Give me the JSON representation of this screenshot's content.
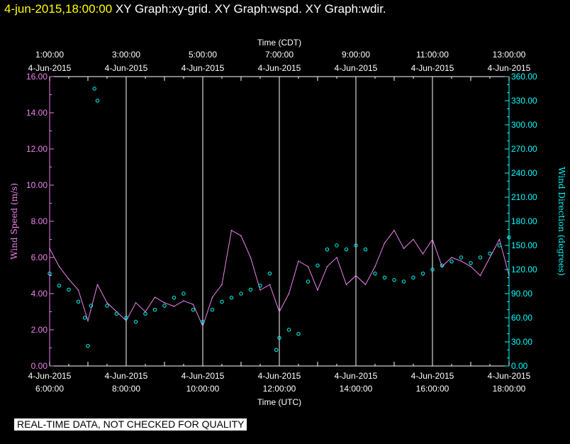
{
  "header": {
    "timestamp": "4-jun-2015,18:00:00",
    "graphs": "XY Graph:xy-grid.  XY Graph:wspd.  XY Graph:wdir."
  },
  "notice": "REAL-TIME DATA, NOT CHECKED FOR QUALITY",
  "chart_data": {
    "type": "line",
    "top_axis": {
      "label": "Time (CDT)",
      "ticks": [
        {
          "time": "1:00:00",
          "date": "4-Jun-2015"
        },
        {
          "time": "3:00:00",
          "date": "4-Jun-2015"
        },
        {
          "time": "5:00:00",
          "date": "4-Jun-2015"
        },
        {
          "time": "7:00:00",
          "date": "4-Jun-2015"
        },
        {
          "time": "9:00:00",
          "date": "4-Jun-2015"
        },
        {
          "time": "11:00:00",
          "date": "4-Jun-2015"
        },
        {
          "time": "13:00:00",
          "date": "4-Jun-2015"
        }
      ]
    },
    "bottom_axis": {
      "label": "Time (UTC)",
      "ticks": [
        {
          "date": "4-Jun-2015",
          "time": "6:00:00"
        },
        {
          "date": "4-Jun-2015",
          "time": "8:00:00"
        },
        {
          "date": "4-Jun-2015",
          "time": "10:00:00"
        },
        {
          "date": "4-Jun-2015",
          "time": "12:00:00"
        },
        {
          "date": "4-Jun-2015",
          "time": "14:00:00"
        },
        {
          "date": "4-Jun-2015",
          "time": "16:00:00"
        },
        {
          "date": "4-Jun-2015",
          "time": "18:00:00"
        }
      ]
    },
    "x_range_utc_hours": [
      6,
      18
    ],
    "left_axis": {
      "label": "Wind Speed (m/s)",
      "range": [
        0,
        16
      ],
      "ticks": [
        "0.00",
        "2.00",
        "4.00",
        "6.00",
        "8.00",
        "10.00",
        "12.00",
        "14.00",
        "16.00"
      ],
      "color": "#ee82ee"
    },
    "right_axis": {
      "label": "Wind Direction (degrees)",
      "range": [
        0,
        360
      ],
      "ticks": [
        "0.00",
        "30.00",
        "60.00",
        "90.00",
        "120.00",
        "150.00",
        "180.00",
        "210.00",
        "240.00",
        "270.00",
        "300.00",
        "330.00",
        "360.00"
      ],
      "color": "#00ffff"
    },
    "grid": "vertical",
    "series": [
      {
        "name": "wspd",
        "axis": "left",
        "style": "line",
        "color": "#ee82ee",
        "x": [
          6.0,
          6.25,
          6.5,
          6.75,
          7.0,
          7.25,
          7.5,
          7.75,
          8.0,
          8.25,
          8.5,
          8.75,
          9.0,
          9.25,
          9.5,
          9.75,
          10.0,
          10.25,
          10.5,
          10.75,
          11.0,
          11.25,
          11.5,
          11.75,
          12.0,
          12.25,
          12.5,
          12.75,
          13.0,
          13.25,
          13.5,
          13.75,
          14.0,
          14.25,
          14.5,
          14.75,
          15.0,
          15.25,
          15.5,
          15.75,
          16.0,
          16.25,
          16.5,
          16.75,
          17.0,
          17.25,
          17.5,
          17.75,
          18.0
        ],
        "y": [
          6.5,
          5.5,
          4.8,
          4.2,
          2.5,
          4.5,
          3.5,
          3.0,
          2.5,
          3.5,
          3.0,
          3.8,
          3.5,
          3.3,
          3.6,
          3.4,
          2.2,
          3.8,
          4.5,
          7.5,
          7.2,
          6.0,
          4.2,
          4.5,
          3.0,
          4.0,
          5.8,
          5.5,
          4.2,
          5.5,
          6.0,
          4.5,
          5.0,
          4.5,
          5.5,
          6.8,
          7.5,
          6.5,
          7.0,
          6.2,
          7.0,
          5.5,
          6.0,
          5.8,
          5.5,
          5.0,
          6.0,
          7.0,
          5.0
        ]
      },
      {
        "name": "wdir",
        "axis": "right",
        "style": "points",
        "color": "#00ffff",
        "x": [
          6.0,
          6.25,
          6.5,
          6.75,
          6.92,
          7.0,
          7.08,
          7.17,
          7.25,
          7.5,
          7.75,
          8.0,
          8.25,
          8.5,
          8.75,
          9.0,
          9.25,
          9.5,
          9.75,
          10.0,
          10.25,
          10.5,
          10.75,
          11.0,
          11.25,
          11.5,
          11.75,
          11.92,
          12.0,
          12.25,
          12.5,
          12.75,
          13.0,
          13.25,
          13.5,
          13.75,
          14.0,
          14.25,
          14.5,
          14.75,
          15.0,
          15.25,
          15.5,
          15.75,
          16.0,
          16.25,
          16.5,
          16.75,
          17.0,
          17.25,
          17.5,
          17.75,
          18.0
        ],
        "y": [
          115,
          100,
          95,
          80,
          60,
          25,
          75,
          345,
          330,
          75,
          65,
          60,
          55,
          65,
          70,
          75,
          85,
          90,
          70,
          55,
          70,
          80,
          85,
          90,
          95,
          100,
          115,
          20,
          35,
          45,
          40,
          105,
          125,
          145,
          150,
          145,
          150,
          145,
          115,
          110,
          107,
          105,
          110,
          115,
          120,
          125,
          130,
          135,
          128,
          135,
          140,
          150,
          160
        ]
      }
    ]
  }
}
